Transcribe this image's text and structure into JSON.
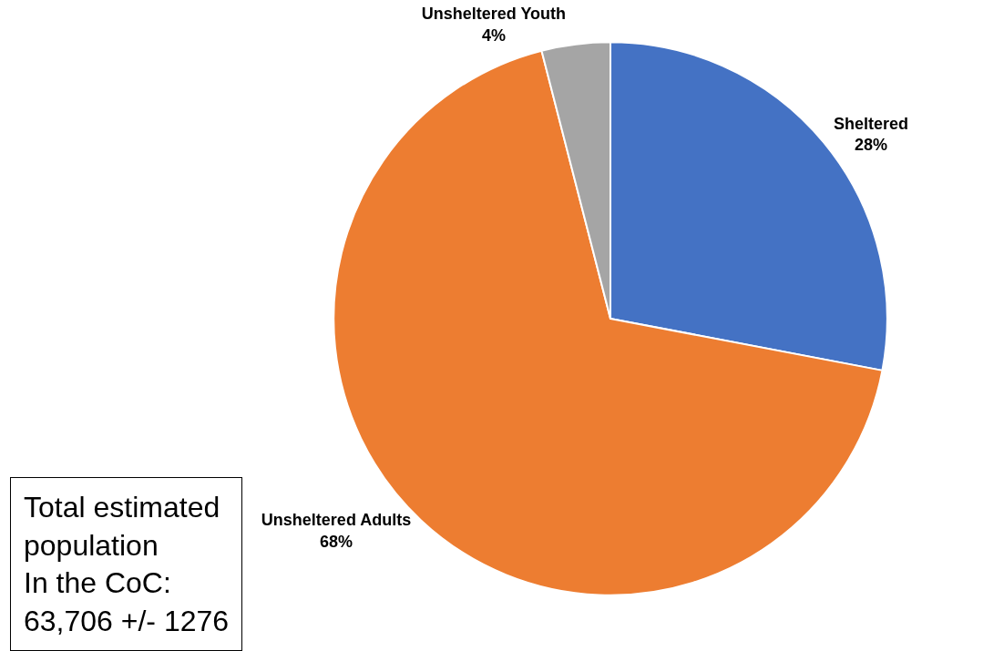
{
  "chart_data": {
    "type": "pie",
    "categories": [
      "Sheltered",
      "Unsheltered Adults",
      "Unsheltered Youth"
    ],
    "values": [
      28,
      68,
      4
    ],
    "value_labels": [
      "28%",
      "68%",
      "4%"
    ],
    "colors": [
      "#4472c4",
      "#ed7d31",
      "#a5a5a5"
    ],
    "legend": false,
    "annotations": [
      "Total estimated\npopulation\nIn the CoC:\n63,706 +/- 1276"
    ]
  }
}
